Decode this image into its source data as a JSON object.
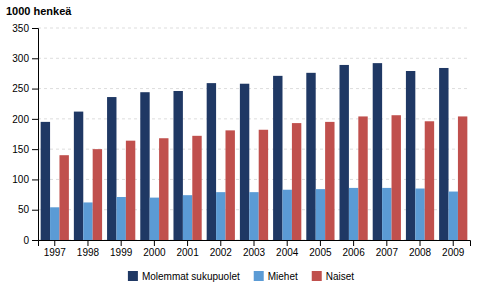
{
  "chart_data": {
    "type": "bar",
    "ylabel": "1000 henkeä",
    "categories": [
      "1997",
      "1998",
      "1999",
      "2000",
      "2001",
      "2002",
      "2003",
      "2004",
      "2005",
      "2006",
      "2007",
      "2008",
      "2009"
    ],
    "series": [
      {
        "name": "Molemmat sukupuolet",
        "color": "#1F3864",
        "values": [
          195,
          212,
          236,
          244,
          246,
          259,
          258,
          271,
          276,
          289,
          292,
          279,
          284
        ]
      },
      {
        "name": "Miehet",
        "color": "#5B9BD5",
        "values": [
          54,
          62,
          71,
          70,
          74,
          79,
          79,
          83,
          84,
          86,
          86,
          85,
          80
        ]
      },
      {
        "name": "Naiset",
        "color": "#C0504D",
        "values": [
          140,
          150,
          164,
          168,
          172,
          181,
          182,
          193,
          195,
          204,
          206,
          196,
          204
        ]
      }
    ],
    "ylim": [
      0,
      350
    ],
    "yticks": [
      0,
      50,
      100,
      150,
      200,
      250,
      300,
      350
    ],
    "grid": true,
    "legend": "bottom"
  }
}
